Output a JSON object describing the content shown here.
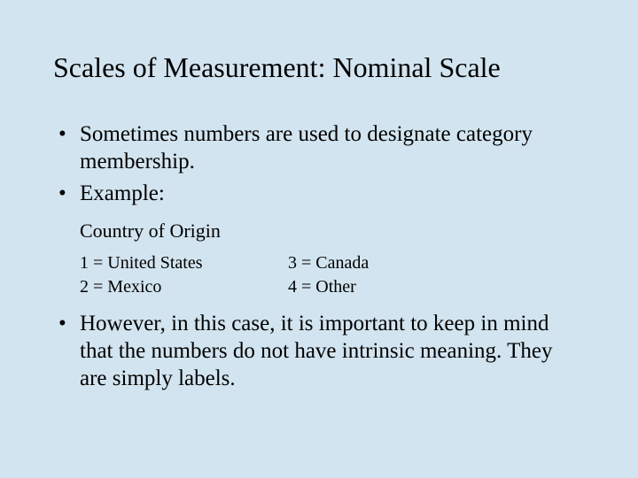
{
  "background_color": "#d2e4ef",
  "text_color": "#000000",
  "font_family": "Times New Roman",
  "title": "Scales of Measurement: Nominal Scale",
  "title_fontsize": 32,
  "body_fontsize": 25,
  "subhead_fontsize": 22,
  "mapping_fontsize": 20,
  "bullet1": "Sometimes numbers are used to designate category membership.",
  "bullet2": "Example:",
  "subhead": "Country of Origin",
  "mappings": {
    "r0c0": "1 = United States",
    "r0c1": "3 = Canada",
    "r1c0": "2 = Mexico",
    "r1c1": "4 = Other"
  },
  "bullet3": "However, in this case, it is important to keep in mind that the numbers do not have intrinsic meaning. They are simply labels."
}
